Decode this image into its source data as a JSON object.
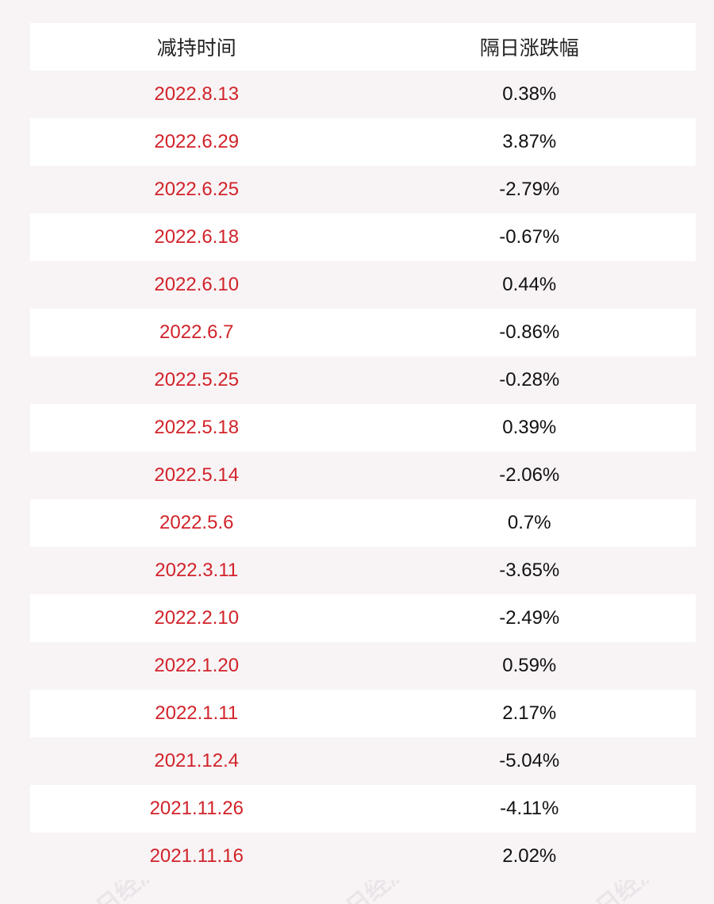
{
  "table": {
    "headers": [
      "减持时间",
      "隔日涨跌幅"
    ],
    "rows": [
      {
        "date": "2022.8.13",
        "change": "0.38%"
      },
      {
        "date": "2022.6.29",
        "change": "3.87%"
      },
      {
        "date": "2022.6.25",
        "change": "-2.79%"
      },
      {
        "date": "2022.6.18",
        "change": "-0.67%"
      },
      {
        "date": "2022.6.10",
        "change": "0.44%"
      },
      {
        "date": "2022.6.7",
        "change": "-0.86%"
      },
      {
        "date": "2022.5.25",
        "change": "-0.28%"
      },
      {
        "date": "2022.5.18",
        "change": "0.39%"
      },
      {
        "date": "2022.5.14",
        "change": "-2.06%"
      },
      {
        "date": "2022.5.6",
        "change": "0.7%"
      },
      {
        "date": "2022.3.11",
        "change": "-3.65%"
      },
      {
        "date": "2022.2.10",
        "change": "-2.49%"
      },
      {
        "date": "2022.1.20",
        "change": "0.59%"
      },
      {
        "date": "2022.1.11",
        "change": "2.17%"
      },
      {
        "date": "2021.12.4",
        "change": "-5.04%"
      },
      {
        "date": "2021.11.26",
        "change": "-4.11%"
      },
      {
        "date": "2021.11.16",
        "change": "2.02%"
      }
    ]
  },
  "watermark": "每日经济新闻",
  "colors": {
    "date_text": "#d1232a",
    "value_text": "#111111",
    "row_alt": "#f8f4f6"
  }
}
